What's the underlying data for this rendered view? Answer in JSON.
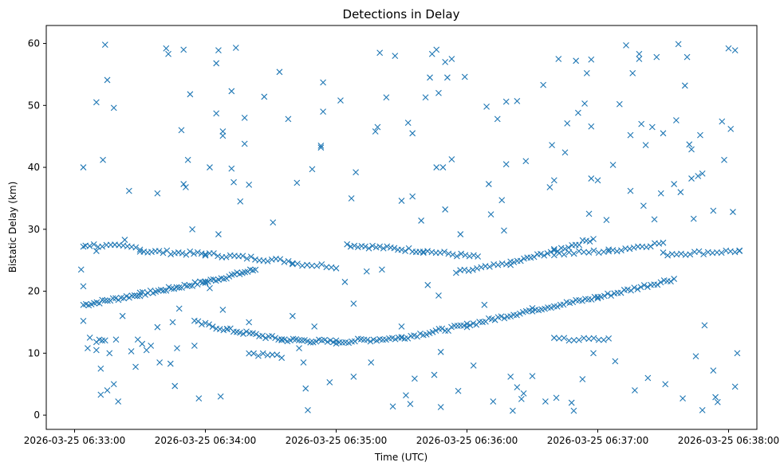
{
  "chart_data": {
    "type": "scatter",
    "title": "Detections in Delay",
    "xlabel": "Time (UTC)",
    "ylabel": "Bistatic Delay (km)",
    "x_axis": {
      "type": "datetime",
      "range": [
        "2026-03-25 06:32:47",
        "2026-03-25 06:38:13"
      ],
      "ticks": [
        "2026-03-25 06:33:00",
        "2026-03-25 06:34:00",
        "2026-03-25 06:35:00",
        "2026-03-25 06:36:00",
        "2026-03-25 06:37:00",
        "2026-03-25 06:38:00"
      ]
    },
    "y_axis": {
      "range": [
        -2.3,
        62.9
      ],
      "ticks": [
        0,
        10,
        20,
        30,
        40,
        50,
        60
      ]
    },
    "marker": "x",
    "color": "#1f77b4",
    "grid": false,
    "track_segments": [
      {
        "start": [
          "2026-03-25 06:33:04",
          17.8
        ],
        "end": [
          "2026-03-25 06:33:30",
          19.5
        ],
        "count": 22
      },
      {
        "start": [
          "2026-03-25 06:33:30",
          19.5
        ],
        "end": [
          "2026-03-25 06:34:00",
          21.5
        ],
        "count": 26
      },
      {
        "start": [
          "2026-03-25 06:34:00",
          21.5
        ],
        "end": [
          "2026-03-25 06:34:23",
          23.5
        ],
        "count": 20
      },
      {
        "start": [
          "2026-03-25 06:33:05",
          27.5
        ],
        "end": [
          "2026-03-25 06:33:30",
          27.0
        ],
        "count": 14
      },
      {
        "start": [
          "2026-03-25 06:33:30",
          26.5
        ],
        "end": [
          "2026-03-25 06:34:00",
          26.0
        ],
        "count": 18
      },
      {
        "start": [
          "2026-03-25 06:34:00",
          26.0
        ],
        "end": [
          "2026-03-25 06:34:40",
          24.8
        ],
        "count": 22
      },
      {
        "start": [
          "2026-03-25 06:34:40",
          24.5
        ],
        "end": [
          "2026-03-25 06:35:00",
          24.0
        ],
        "count": 10
      },
      {
        "start": [
          "2026-03-25 06:35:05",
          27.5
        ],
        "end": [
          "2026-03-25 06:35:40",
          26.5
        ],
        "count": 22
      },
      {
        "start": [
          "2026-03-25 06:35:40",
          26.5
        ],
        "end": [
          "2026-03-25 06:36:05",
          25.5
        ],
        "count": 14
      },
      {
        "start": [
          "2026-03-25 06:35:55",
          23.0
        ],
        "end": [
          "2026-03-25 06:36:20",
          24.5
        ],
        "count": 14
      },
      {
        "start": [
          "2026-03-25 06:36:20",
          24.5
        ],
        "end": [
          "2026-03-25 06:36:40",
          26.5
        ],
        "count": 14
      },
      {
        "start": [
          "2026-03-25 06:36:40",
          26.5
        ],
        "end": [
          "2026-03-25 06:36:58",
          28.5
        ],
        "count": 12
      },
      {
        "start": [
          "2026-03-25 06:36:40",
          26.0
        ],
        "end": [
          "2026-03-25 06:37:05",
          26.5
        ],
        "count": 12
      },
      {
        "start": [
          "2026-03-25 06:37:05",
          26.5
        ],
        "end": [
          "2026-03-25 06:37:30",
          27.8
        ],
        "count": 14
      },
      {
        "start": [
          "2026-03-25 06:37:30",
          26.0
        ],
        "end": [
          "2026-03-25 06:38:05",
          26.5
        ],
        "count": 18
      },
      {
        "start": [
          "2026-03-25 06:33:55",
          15.0
        ],
        "end": [
          "2026-03-25 06:34:10",
          13.8
        ],
        "count": 10
      },
      {
        "start": [
          "2026-03-25 06:34:10",
          13.8
        ],
        "end": [
          "2026-03-25 06:34:35",
          12.2
        ],
        "count": 18
      },
      {
        "start": [
          "2026-03-25 06:34:35",
          12.2
        ],
        "end": [
          "2026-03-25 06:35:00",
          11.8
        ],
        "count": 20
      },
      {
        "start": [
          "2026-03-25 06:35:00",
          11.8
        ],
        "end": [
          "2026-03-25 06:35:30",
          12.5
        ],
        "count": 22
      },
      {
        "start": [
          "2026-03-25 06:35:30",
          12.5
        ],
        "end": [
          "2026-03-25 06:36:00",
          14.5
        ],
        "count": 22
      },
      {
        "start": [
          "2026-03-25 06:36:00",
          14.5
        ],
        "end": [
          "2026-03-25 06:36:30",
          17.0
        ],
        "count": 22
      },
      {
        "start": [
          "2026-03-25 06:36:30",
          17.0
        ],
        "end": [
          "2026-03-25 06:37:00",
          19.0
        ],
        "count": 22
      },
      {
        "start": [
          "2026-03-25 06:37:00",
          19.0
        ],
        "end": [
          "2026-03-25 06:37:35",
          22.0
        ],
        "count": 24
      },
      {
        "start": [
          "2026-03-25 06:34:20",
          10.0
        ],
        "end": [
          "2026-03-25 06:34:35",
          9.5
        ],
        "count": 8
      },
      {
        "start": [
          "2026-03-25 06:36:40",
          12.2
        ],
        "end": [
          "2026-03-25 06:37:05",
          12.2
        ],
        "count": 12
      },
      {
        "start": [
          "2026-03-25 06:33:10",
          12.0
        ],
        "end": [
          "2026-03-25 06:33:14",
          12.0
        ],
        "count": 4
      }
    ],
    "points": [
      [
        "2026-03-25 06:33:04",
        40.0
      ],
      [
        "2026-03-25 06:33:04",
        27.2
      ],
      [
        "2026-03-25 06:33:03",
        23.5
      ],
      [
        "2026-03-25 06:33:04",
        20.8
      ],
      [
        "2026-03-25 06:33:04",
        15.2
      ],
      [
        "2026-03-25 06:33:06",
        10.8
      ],
      [
        "2026-03-25 06:33:07",
        12.5
      ],
      [
        "2026-03-25 06:33:10",
        50.5
      ],
      [
        "2026-03-25 06:33:10",
        26.5
      ],
      [
        "2026-03-25 06:33:10",
        10.5
      ],
      [
        "2026-03-25 06:33:12",
        7.5
      ],
      [
        "2026-03-25 06:33:12",
        3.3
      ],
      [
        "2026-03-25 06:33:13",
        41.2
      ],
      [
        "2026-03-25 06:33:14",
        59.8
      ],
      [
        "2026-03-25 06:33:15",
        54.1
      ],
      [
        "2026-03-25 06:33:15",
        4.0
      ],
      [
        "2026-03-25 06:33:16",
        10.0
      ],
      [
        "2026-03-25 06:33:18",
        49.6
      ],
      [
        "2026-03-25 06:33:18",
        5.0
      ],
      [
        "2026-03-25 06:33:19",
        12.2
      ],
      [
        "2026-03-25 06:33:20",
        2.2
      ],
      [
        "2026-03-25 06:33:22",
        16.0
      ],
      [
        "2026-03-25 06:33:23",
        28.3
      ],
      [
        "2026-03-25 06:33:25",
        36.2
      ],
      [
        "2026-03-25 06:33:26",
        10.3
      ],
      [
        "2026-03-25 06:33:28",
        7.8
      ],
      [
        "2026-03-25 06:33:29",
        12.2
      ],
      [
        "2026-03-25 06:33:31",
        11.5
      ],
      [
        "2026-03-25 06:33:33",
        10.5
      ],
      [
        "2026-03-25 06:33:35",
        11.2
      ],
      [
        "2026-03-25 06:33:38",
        35.8
      ],
      [
        "2026-03-25 06:33:38",
        14.2
      ],
      [
        "2026-03-25 06:33:39",
        8.5
      ],
      [
        "2026-03-25 06:33:42",
        59.2
      ],
      [
        "2026-03-25 06:33:43",
        58.3
      ],
      [
        "2026-03-25 06:33:44",
        8.3
      ],
      [
        "2026-03-25 06:33:45",
        15.0
      ],
      [
        "2026-03-25 06:33:46",
        4.7
      ],
      [
        "2026-03-25 06:33:47",
        10.8
      ],
      [
        "2026-03-25 06:33:48",
        17.2
      ],
      [
        "2026-03-25 06:33:49",
        46.0
      ],
      [
        "2026-03-25 06:33:50",
        37.3
      ],
      [
        "2026-03-25 06:33:50",
        59.0
      ],
      [
        "2026-03-25 06:33:51",
        36.8
      ],
      [
        "2026-03-25 06:33:52",
        41.2
      ],
      [
        "2026-03-25 06:33:53",
        51.8
      ],
      [
        "2026-03-25 06:33:54",
        30.0
      ],
      [
        "2026-03-25 06:33:55",
        11.2
      ],
      [
        "2026-03-25 06:33:57",
        2.7
      ],
      [
        "2026-03-25 06:34:02",
        40.0
      ],
      [
        "2026-03-25 06:34:02",
        20.5
      ],
      [
        "2026-03-25 06:34:05",
        56.8
      ],
      [
        "2026-03-25 06:34:05",
        48.7
      ],
      [
        "2026-03-25 06:34:06",
        58.9
      ],
      [
        "2026-03-25 06:34:06",
        29.2
      ],
      [
        "2026-03-25 06:34:07",
        3.0
      ],
      [
        "2026-03-25 06:34:08",
        45.8
      ],
      [
        "2026-03-25 06:34:08",
        45.1
      ],
      [
        "2026-03-25 06:34:08",
        17.0
      ],
      [
        "2026-03-25 06:34:12",
        52.3
      ],
      [
        "2026-03-25 06:34:12",
        39.8
      ],
      [
        "2026-03-25 06:34:13",
        37.6
      ],
      [
        "2026-03-25 06:34:14",
        59.3
      ],
      [
        "2026-03-25 06:34:16",
        34.5
      ],
      [
        "2026-03-25 06:34:18",
        48.0
      ],
      [
        "2026-03-25 06:34:18",
        43.8
      ],
      [
        "2026-03-25 06:34:20",
        37.2
      ],
      [
        "2026-03-25 06:34:20",
        15.0
      ],
      [
        "2026-03-25 06:34:27",
        51.4
      ],
      [
        "2026-03-25 06:34:31",
        31.1
      ],
      [
        "2026-03-25 06:34:34",
        55.4
      ],
      [
        "2026-03-25 06:34:38",
        47.8
      ],
      [
        "2026-03-25 06:34:40",
        16.0
      ],
      [
        "2026-03-25 06:34:42",
        37.5
      ],
      [
        "2026-03-25 06:34:43",
        10.8
      ],
      [
        "2026-03-25 06:34:45",
        8.5
      ],
      [
        "2026-03-25 06:34:46",
        4.3
      ],
      [
        "2026-03-25 06:34:47",
        0.8
      ],
      [
        "2026-03-25 06:34:49",
        39.7
      ],
      [
        "2026-03-25 06:34:50",
        14.3
      ],
      [
        "2026-03-25 06:34:53",
        43.5
      ],
      [
        "2026-03-25 06:34:53",
        43.2
      ],
      [
        "2026-03-25 06:34:54",
        53.7
      ],
      [
        "2026-03-25 06:34:54",
        49.0
      ],
      [
        "2026-03-25 06:34:57",
        5.3
      ],
      [
        "2026-03-25 06:35:02",
        50.8
      ],
      [
        "2026-03-25 06:35:04",
        21.5
      ],
      [
        "2026-03-25 06:35:07",
        35.0
      ],
      [
        "2026-03-25 06:35:08",
        18.0
      ],
      [
        "2026-03-25 06:35:08",
        6.2
      ],
      [
        "2026-03-25 06:35:09",
        39.2
      ],
      [
        "2026-03-25 06:35:14",
        23.2
      ],
      [
        "2026-03-25 06:35:16",
        8.5
      ],
      [
        "2026-03-25 06:35:18",
        45.8
      ],
      [
        "2026-03-25 06:35:19",
        46.5
      ],
      [
        "2026-03-25 06:35:20",
        58.5
      ],
      [
        "2026-03-25 06:35:21",
        23.5
      ],
      [
        "2026-03-25 06:35:23",
        51.3
      ],
      [
        "2026-03-25 06:35:26",
        1.4
      ],
      [
        "2026-03-25 06:35:27",
        58.0
      ],
      [
        "2026-03-25 06:35:30",
        14.3
      ],
      [
        "2026-03-25 06:35:30",
        34.6
      ],
      [
        "2026-03-25 06:35:32",
        3.2
      ],
      [
        "2026-03-25 06:35:33",
        47.2
      ],
      [
        "2026-03-25 06:35:34",
        1.8
      ],
      [
        "2026-03-25 06:35:35",
        45.5
      ],
      [
        "2026-03-25 06:35:35",
        35.3
      ],
      [
        "2026-03-25 06:35:36",
        5.9
      ],
      [
        "2026-03-25 06:35:39",
        31.4
      ],
      [
        "2026-03-25 06:35:41",
        51.3
      ],
      [
        "2026-03-25 06:35:42",
        21.0
      ],
      [
        "2026-03-25 06:35:43",
        54.5
      ],
      [
        "2026-03-25 06:35:44",
        58.3
      ],
      [
        "2026-03-25 06:35:45",
        6.5
      ],
      [
        "2026-03-25 06:35:46",
        59.0
      ],
      [
        "2026-03-25 06:35:46",
        40.0
      ],
      [
        "2026-03-25 06:35:47",
        52.0
      ],
      [
        "2026-03-25 06:35:47",
        19.3
      ],
      [
        "2026-03-25 06:35:48",
        1.3
      ],
      [
        "2026-03-25 06:35:48",
        10.2
      ],
      [
        "2026-03-25 06:35:49",
        40.0
      ],
      [
        "2026-03-25 06:35:50",
        57.0
      ],
      [
        "2026-03-25 06:35:50",
        33.2
      ],
      [
        "2026-03-25 06:35:51",
        54.5
      ],
      [
        "2026-03-25 06:35:53",
        57.5
      ],
      [
        "2026-03-25 06:35:53",
        41.3
      ],
      [
        "2026-03-25 06:35:56",
        3.9
      ],
      [
        "2026-03-25 06:35:57",
        29.2
      ],
      [
        "2026-03-25 06:35:59",
        54.6
      ],
      [
        "2026-03-25 06:36:03",
        8.0
      ],
      [
        "2026-03-25 06:36:08",
        17.8
      ],
      [
        "2026-03-25 06:36:09",
        49.8
      ],
      [
        "2026-03-25 06:36:10",
        37.3
      ],
      [
        "2026-03-25 06:36:11",
        32.4
      ],
      [
        "2026-03-25 06:36:12",
        2.2
      ],
      [
        "2026-03-25 06:36:14",
        47.8
      ],
      [
        "2026-03-25 06:36:16",
        34.7
      ],
      [
        "2026-03-25 06:36:17",
        29.8
      ],
      [
        "2026-03-25 06:36:18",
        50.6
      ],
      [
        "2026-03-25 06:36:18",
        40.5
      ],
      [
        "2026-03-25 06:36:20",
        6.2
      ],
      [
        "2026-03-25 06:36:21",
        0.7
      ],
      [
        "2026-03-25 06:36:23",
        50.7
      ],
      [
        "2026-03-25 06:36:23",
        4.5
      ],
      [
        "2026-03-25 06:36:25",
        2.6
      ],
      [
        "2026-03-25 06:36:26",
        3.5
      ],
      [
        "2026-03-25 06:36:27",
        41.0
      ],
      [
        "2026-03-25 06:36:30",
        6.3
      ],
      [
        "2026-03-25 06:36:35",
        53.3
      ],
      [
        "2026-03-25 06:36:36",
        2.2
      ],
      [
        "2026-03-25 06:36:38",
        36.8
      ],
      [
        "2026-03-25 06:36:39",
        43.6
      ],
      [
        "2026-03-25 06:36:40",
        37.9
      ],
      [
        "2026-03-25 06:36:41",
        2.8
      ],
      [
        "2026-03-25 06:36:42",
        57.5
      ],
      [
        "2026-03-25 06:36:45",
        42.4
      ],
      [
        "2026-03-25 06:36:46",
        47.1
      ],
      [
        "2026-03-25 06:36:48",
        2.0
      ],
      [
        "2026-03-25 06:36:49",
        0.7
      ],
      [
        "2026-03-25 06:36:50",
        57.2
      ],
      [
        "2026-03-25 06:36:51",
        48.8
      ],
      [
        "2026-03-25 06:36:53",
        5.8
      ],
      [
        "2026-03-25 06:36:54",
        50.3
      ],
      [
        "2026-03-25 06:36:55",
        55.2
      ],
      [
        "2026-03-25 06:36:56",
        32.5
      ],
      [
        "2026-03-25 06:36:57",
        57.4
      ],
      [
        "2026-03-25 06:36:57",
        46.6
      ],
      [
        "2026-03-25 06:36:57",
        38.2
      ],
      [
        "2026-03-25 06:36:58",
        10.0
      ],
      [
        "2026-03-25 06:37:00",
        37.9
      ],
      [
        "2026-03-25 06:37:04",
        31.5
      ],
      [
        "2026-03-25 06:37:07",
        40.4
      ],
      [
        "2026-03-25 06:37:08",
        8.7
      ],
      [
        "2026-03-25 06:37:10",
        50.2
      ],
      [
        "2026-03-25 06:37:13",
        59.7
      ],
      [
        "2026-03-25 06:37:15",
        36.2
      ],
      [
        "2026-03-25 06:37:15",
        45.2
      ],
      [
        "2026-03-25 06:37:16",
        55.2
      ],
      [
        "2026-03-25 06:37:17",
        4.0
      ],
      [
        "2026-03-25 06:37:19",
        57.5
      ],
      [
        "2026-03-25 06:37:19",
        58.3
      ],
      [
        "2026-03-25 06:37:20",
        47.0
      ],
      [
        "2026-03-25 06:37:21",
        33.8
      ],
      [
        "2026-03-25 06:37:22",
        43.6
      ],
      [
        "2026-03-25 06:37:23",
        6.0
      ],
      [
        "2026-03-25 06:37:25",
        46.5
      ],
      [
        "2026-03-25 06:37:26",
        31.6
      ],
      [
        "2026-03-25 06:37:27",
        57.8
      ],
      [
        "2026-03-25 06:37:29",
        35.8
      ],
      [
        "2026-03-25 06:37:30",
        45.5
      ],
      [
        "2026-03-25 06:37:31",
        5.0
      ],
      [
        "2026-03-25 06:37:35",
        37.3
      ],
      [
        "2026-03-25 06:37:36",
        47.6
      ],
      [
        "2026-03-25 06:37:37",
        59.9
      ],
      [
        "2026-03-25 06:37:38",
        36.0
      ],
      [
        "2026-03-25 06:37:39",
        2.7
      ],
      [
        "2026-03-25 06:37:40",
        53.2
      ],
      [
        "2026-03-25 06:37:41",
        57.8
      ],
      [
        "2026-03-25 06:37:42",
        43.7
      ],
      [
        "2026-03-25 06:37:43",
        42.9
      ],
      [
        "2026-03-25 06:37:43",
        38.2
      ],
      [
        "2026-03-25 06:37:44",
        31.7
      ],
      [
        "2026-03-25 06:37:45",
        9.5
      ],
      [
        "2026-03-25 06:37:46",
        38.6
      ],
      [
        "2026-03-25 06:37:47",
        45.2
      ],
      [
        "2026-03-25 06:37:48",
        39.0
      ],
      [
        "2026-03-25 06:37:48",
        0.8
      ],
      [
        "2026-03-25 06:37:49",
        14.5
      ],
      [
        "2026-03-25 06:37:53",
        33.0
      ],
      [
        "2026-03-25 06:37:53",
        7.2
      ],
      [
        "2026-03-25 06:37:54",
        2.9
      ],
      [
        "2026-03-25 06:37:55",
        2.1
      ],
      [
        "2026-03-25 06:37:57",
        47.4
      ],
      [
        "2026-03-25 06:37:58",
        41.2
      ],
      [
        "2026-03-25 06:38:00",
        59.2
      ],
      [
        "2026-03-25 06:38:01",
        46.2
      ],
      [
        "2026-03-25 06:38:02",
        32.8
      ],
      [
        "2026-03-25 06:38:03",
        58.9
      ],
      [
        "2026-03-25 06:38:03",
        4.6
      ],
      [
        "2026-03-25 06:38:04",
        10.0
      ],
      [
        "2026-03-25 06:38:05",
        26.5
      ]
    ]
  }
}
